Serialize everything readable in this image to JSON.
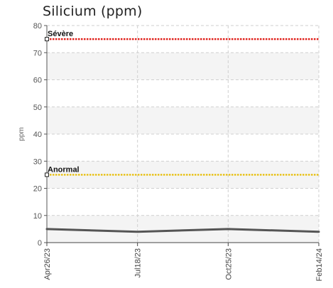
{
  "chart_data": {
    "type": "line",
    "title": "Silicium (ppm)",
    "xlabel": "",
    "ylabel": "ppm",
    "ylim": [
      0,
      80
    ],
    "yticks": [
      0,
      10,
      20,
      30,
      40,
      50,
      60,
      70,
      80
    ],
    "categories": [
      "Apr26/23",
      "Jul18/23",
      "Oct25/23",
      "Feb14/24"
    ],
    "grid": true,
    "series": [
      {
        "values": [
          5,
          4,
          5,
          4
        ],
        "color": "#555555"
      }
    ],
    "reference_lines": [
      {
        "label": "Sévère",
        "value": 75,
        "color": "#e0201b"
      },
      {
        "label": "Anormal",
        "value": 25,
        "color": "#e8c21a"
      }
    ]
  }
}
